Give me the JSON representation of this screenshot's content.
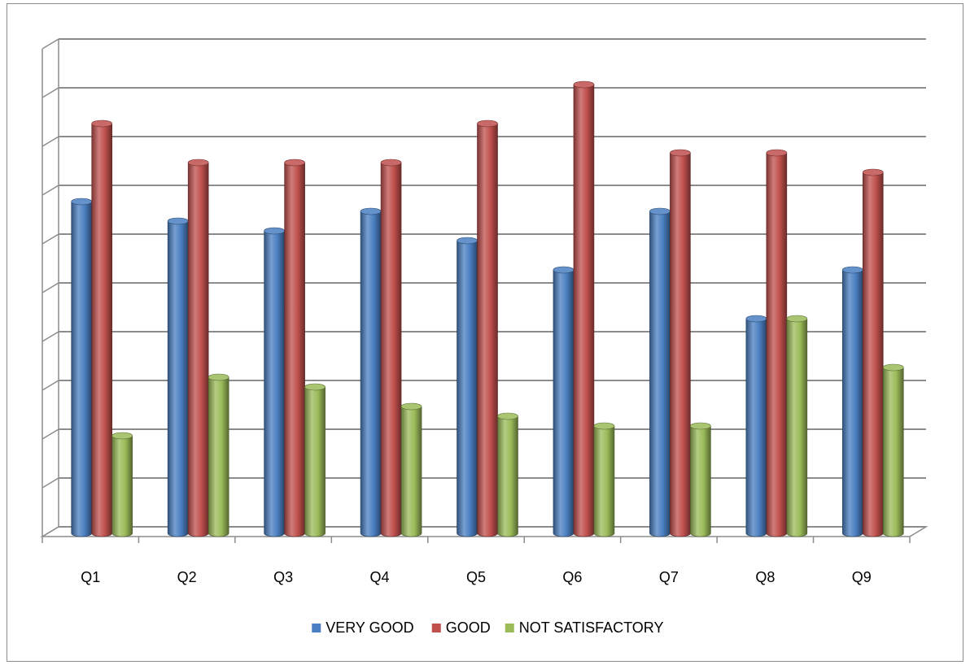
{
  "chart_data": {
    "type": "bar",
    "style": "3d-cylinder",
    "categories": [
      "Q1",
      "Q2",
      "Q3",
      "Q4",
      "Q5",
      "Q6",
      "Q7",
      "Q8",
      "Q9"
    ],
    "series": [
      {
        "name": "VERY GOOD",
        "color": "#4a7fc1",
        "values": [
          34,
          32,
          31,
          33,
          30,
          27,
          33,
          22,
          27
        ]
      },
      {
        "name": "GOOD",
        "color": "#c0504d",
        "values": [
          42,
          38,
          38,
          38,
          42,
          46,
          39,
          39,
          37
        ]
      },
      {
        "name": "NOT SATISFACTORY",
        "color": "#9bbb59",
        "values": [
          10,
          16,
          15,
          13,
          12,
          11,
          11,
          22,
          17
        ]
      }
    ],
    "ylim": [
      0,
      50
    ],
    "grid": true,
    "legend_position": "bottom",
    "ytick_labels_shown": false
  }
}
